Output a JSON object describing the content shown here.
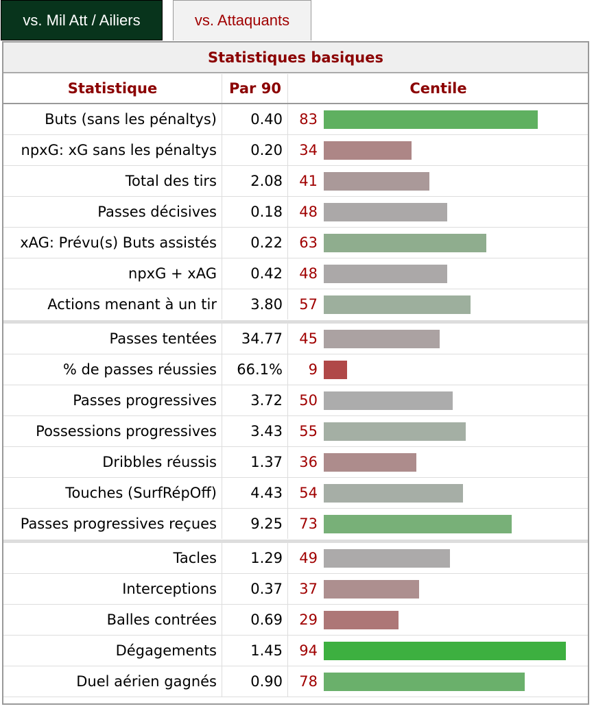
{
  "tabs": [
    {
      "label": "vs. Mil Att / Ailiers",
      "active": true
    },
    {
      "label": "vs. Attaquants",
      "active": false
    }
  ],
  "table": {
    "title": "Statistiques basiques",
    "headers": {
      "stat": "Statistique",
      "per90": "Par 90",
      "percentile": "Centile"
    },
    "rows": [
      {
        "stat": "Buts (sans les pénaltys)",
        "per90": "0.40",
        "percentile": "83",
        "pct": 83,
        "color": "#5fb060"
      },
      {
        "stat": "npxG: xG sans les pénaltys",
        "per90": "0.20",
        "percentile": "34",
        "pct": 34,
        "color": "#ad8686"
      },
      {
        "stat": "Total des tirs",
        "per90": "2.08",
        "percentile": "41",
        "pct": 41,
        "color": "#aa9999"
      },
      {
        "stat": "Passes décisives",
        "per90": "0.18",
        "percentile": "48",
        "pct": 48,
        "color": "#aba8a8"
      },
      {
        "stat": "xAG: Prévu(s) Buts assistés",
        "per90": "0.22",
        "percentile": "63",
        "pct": 63,
        "color": "#8fad8e"
      },
      {
        "stat": "npxG + xAG",
        "per90": "0.42",
        "percentile": "48",
        "pct": 48,
        "color": "#aba8a8"
      },
      {
        "stat": "Actions menant à un tir",
        "per90": "3.80",
        "percentile": "57",
        "pct": 57,
        "color": "#9daf9d",
        "sep": true
      },
      {
        "stat": "Passes tentées",
        "per90": "34.77",
        "percentile": "45",
        "pct": 45,
        "color": "#aba2a2"
      },
      {
        "stat": "% de passes réussies",
        "per90": "66.1%",
        "percentile": "9",
        "pct": 9,
        "color": "#b04848"
      },
      {
        "stat": "Passes progressives",
        "per90": "3.72",
        "percentile": "50",
        "pct": 50,
        "color": "#acacac"
      },
      {
        "stat": "Possessions progressives",
        "per90": "3.43",
        "percentile": "55",
        "pct": 55,
        "color": "#a4afa4"
      },
      {
        "stat": "Dribbles réussis",
        "per90": "1.37",
        "percentile": "36",
        "pct": 36,
        "color": "#ad8c8c"
      },
      {
        "stat": "Touches (SurfRépOff)",
        "per90": "4.43",
        "percentile": "54",
        "pct": 54,
        "color": "#a6aea6"
      },
      {
        "stat": "Passes progressives reçues",
        "per90": "9.25",
        "percentile": "73",
        "pct": 73,
        "color": "#78b078",
        "sep": true
      },
      {
        "stat": "Tacles",
        "per90": "1.29",
        "percentile": "49",
        "pct": 49,
        "color": "#acaaaa"
      },
      {
        "stat": "Interceptions",
        "per90": "0.37",
        "percentile": "37",
        "pct": 37,
        "color": "#ad8f8f"
      },
      {
        "stat": "Balles contrées",
        "per90": "0.69",
        "percentile": "29",
        "pct": 29,
        "color": "#ad7777"
      },
      {
        "stat": "Dégagements",
        "per90": "1.45",
        "percentile": "94",
        "pct": 94,
        "color": "#3db040"
      },
      {
        "stat": "Duel aérien gagnés",
        "per90": "0.90",
        "percentile": "78",
        "pct": 78,
        "color": "#6ab06b"
      }
    ]
  }
}
